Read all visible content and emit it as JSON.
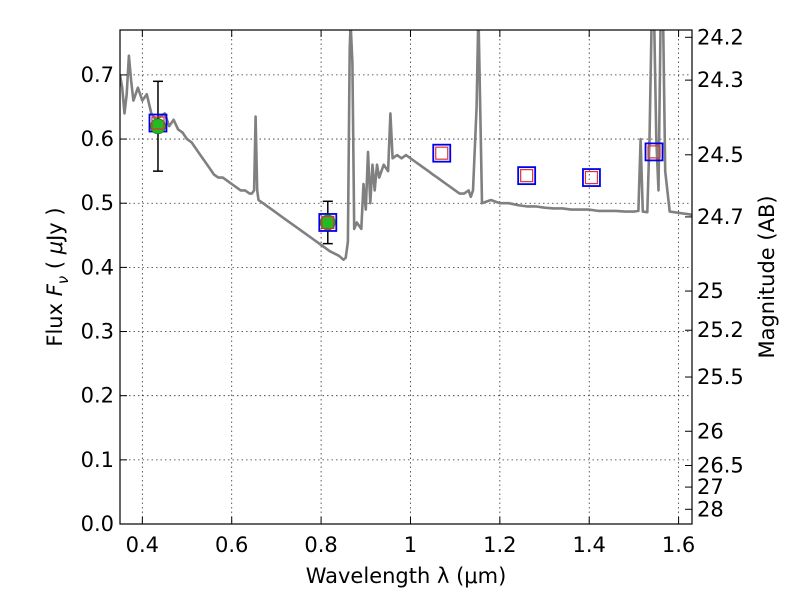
{
  "chart_data": {
    "type": "scatter",
    "xlabel": "Wavelength  λ (μm)",
    "ylabel": "Flux  F_ν  ( μJy )",
    "ylabel_parts": {
      "pre": "Flux  ",
      "var": "F",
      "sub": "ν",
      "mid": "  ( ",
      "mu": "μ",
      "post": "Jy )"
    },
    "y2label": "Magnitude (AB)",
    "xlim": [
      0.35,
      1.63
    ],
    "ylim": [
      0.0,
      0.77
    ],
    "grid": true,
    "x_ticks": [
      {
        "value": 0.4,
        "label": "0.4"
      },
      {
        "value": 0.6,
        "label": "0.6"
      },
      {
        "value": 0.8,
        "label": "0.8"
      },
      {
        "value": 1.0,
        "label": "1"
      },
      {
        "value": 1.2,
        "label": "1.2"
      },
      {
        "value": 1.4,
        "label": "1.4"
      },
      {
        "value": 1.6,
        "label": "1.6"
      }
    ],
    "y_ticks": [
      {
        "value": 0.0,
        "label": "0.0"
      },
      {
        "value": 0.1,
        "label": "0.1"
      },
      {
        "value": 0.2,
        "label": "0.2"
      },
      {
        "value": 0.3,
        "label": "0.3"
      },
      {
        "value": 0.4,
        "label": "0.4"
      },
      {
        "value": 0.5,
        "label": "0.5"
      },
      {
        "value": 0.6,
        "label": "0.6"
      },
      {
        "value": 0.7,
        "label": "0.7"
      }
    ],
    "magnitude_ticks": [
      "24.2",
      "24.3",
      "24.5",
      "24.7",
      "25",
      "25.2",
      "25.5",
      "26",
      "26.5",
      "27",
      "28"
    ],
    "colors": {
      "sed_line": "#808080",
      "observed_fill": "#22bb22",
      "observed_edge": "#1a7a1a",
      "model_outer": "#0000ee",
      "model_inner": "#dd3333",
      "errorbar": "#000000"
    },
    "series": [
      {
        "type": "line",
        "points": [
          [
            0.35,
            0.7
          ],
          [
            0.355,
            0.68
          ],
          [
            0.36,
            0.64
          ],
          [
            0.365,
            0.67
          ],
          [
            0.37,
            0.73
          ],
          [
            0.375,
            0.69
          ],
          [
            0.38,
            0.66
          ],
          [
            0.39,
            0.68
          ],
          [
            0.4,
            0.66
          ],
          [
            0.41,
            0.67
          ],
          [
            0.42,
            0.64
          ],
          [
            0.43,
            0.63
          ],
          [
            0.44,
            0.635
          ],
          [
            0.45,
            0.64
          ],
          [
            0.46,
            0.62
          ],
          [
            0.47,
            0.63
          ],
          [
            0.48,
            0.615
          ],
          [
            0.49,
            0.61
          ],
          [
            0.5,
            0.6
          ],
          [
            0.51,
            0.595
          ],
          [
            0.52,
            0.585
          ],
          [
            0.53,
            0.575
          ],
          [
            0.54,
            0.565
          ],
          [
            0.55,
            0.555
          ],
          [
            0.56,
            0.545
          ],
          [
            0.57,
            0.54
          ],
          [
            0.58,
            0.54
          ],
          [
            0.59,
            0.535
          ],
          [
            0.6,
            0.53
          ],
          [
            0.61,
            0.525
          ],
          [
            0.62,
            0.52
          ],
          [
            0.63,
            0.52
          ],
          [
            0.64,
            0.515
          ],
          [
            0.645,
            0.515
          ],
          [
            0.65,
            0.52
          ],
          [
            0.6535,
            0.635
          ],
          [
            0.657,
            0.52
          ],
          [
            0.66,
            0.505
          ],
          [
            0.67,
            0.5
          ],
          [
            0.68,
            0.495
          ],
          [
            0.69,
            0.49
          ],
          [
            0.7,
            0.485
          ],
          [
            0.72,
            0.475
          ],
          [
            0.74,
            0.465
          ],
          [
            0.76,
            0.455
          ],
          [
            0.78,
            0.445
          ],
          [
            0.8,
            0.435
          ],
          [
            0.82,
            0.425
          ],
          [
            0.84,
            0.418
          ],
          [
            0.85,
            0.412
          ],
          [
            0.855,
            0.415
          ],
          [
            0.86,
            0.44
          ],
          [
            0.864,
            0.74
          ],
          [
            0.866,
            0.78
          ],
          [
            0.87,
            0.72
          ],
          [
            0.874,
            0.46
          ],
          [
            0.88,
            0.47
          ],
          [
            0.89,
            0.46
          ],
          [
            0.895,
            0.53
          ],
          [
            0.9,
            0.49
          ],
          [
            0.905,
            0.58
          ],
          [
            0.91,
            0.5
          ],
          [
            0.915,
            0.56
          ],
          [
            0.92,
            0.52
          ],
          [
            0.925,
            0.56
          ],
          [
            0.93,
            0.54
          ],
          [
            0.94,
            0.56
          ],
          [
            0.95,
            0.55
          ],
          [
            0.955,
            0.64
          ],
          [
            0.96,
            0.57
          ],
          [
            0.97,
            0.575
          ],
          [
            0.98,
            0.57
          ],
          [
            0.99,
            0.575
          ],
          [
            1.0,
            0.57
          ],
          [
            1.01,
            0.565
          ],
          [
            1.02,
            0.56
          ],
          [
            1.03,
            0.555
          ],
          [
            1.04,
            0.55
          ],
          [
            1.05,
            0.545
          ],
          [
            1.06,
            0.54
          ],
          [
            1.07,
            0.535
          ],
          [
            1.08,
            0.53
          ],
          [
            1.09,
            0.525
          ],
          [
            1.1,
            0.52
          ],
          [
            1.11,
            0.515
          ],
          [
            1.12,
            0.515
          ],
          [
            1.13,
            0.52
          ],
          [
            1.135,
            0.51
          ],
          [
            1.14,
            0.52
          ],
          [
            1.148,
            0.65
          ],
          [
            1.152,
            0.8
          ],
          [
            1.156,
            0.65
          ],
          [
            1.16,
            0.5
          ],
          [
            1.18,
            0.505
          ],
          [
            1.2,
            0.5
          ],
          [
            1.22,
            0.5
          ],
          [
            1.24,
            0.497
          ],
          [
            1.26,
            0.495
          ],
          [
            1.28,
            0.495
          ],
          [
            1.3,
            0.493
          ],
          [
            1.32,
            0.492
          ],
          [
            1.34,
            0.492
          ],
          [
            1.36,
            0.49
          ],
          [
            1.38,
            0.49
          ],
          [
            1.4,
            0.49
          ],
          [
            1.42,
            0.488
          ],
          [
            1.44,
            0.488
          ],
          [
            1.46,
            0.488
          ],
          [
            1.48,
            0.487
          ],
          [
            1.5,
            0.487
          ],
          [
            1.51,
            0.488
          ],
          [
            1.515,
            0.6
          ],
          [
            1.52,
            0.487
          ],
          [
            1.53,
            0.486
          ],
          [
            1.535,
            0.6
          ],
          [
            1.54,
            0.8
          ],
          [
            1.545,
            0.8
          ],
          [
            1.55,
            0.6
          ],
          [
            1.555,
            0.52
          ],
          [
            1.56,
            0.8
          ],
          [
            1.565,
            0.8
          ],
          [
            1.57,
            0.55
          ],
          [
            1.58,
            0.487
          ],
          [
            1.59,
            0.486
          ],
          [
            1.6,
            0.485
          ],
          [
            1.61,
            0.484
          ],
          [
            1.62,
            0.483
          ],
          [
            1.63,
            0.482
          ]
        ]
      },
      {
        "type": "observed",
        "points": [
          {
            "x": 0.435,
            "y": 0.62,
            "yerr": 0.07
          },
          {
            "x": 0.815,
            "y": 0.47,
            "yerr": 0.033
          }
        ]
      },
      {
        "type": "model",
        "points": [
          {
            "x": 0.435,
            "y": 0.625
          },
          {
            "x": 0.815,
            "y": 0.47
          },
          {
            "x": 1.07,
            "y": 0.578
          },
          {
            "x": 1.26,
            "y": 0.543
          },
          {
            "x": 1.405,
            "y": 0.54
          },
          {
            "x": 1.545,
            "y": 0.58
          }
        ]
      }
    ]
  }
}
